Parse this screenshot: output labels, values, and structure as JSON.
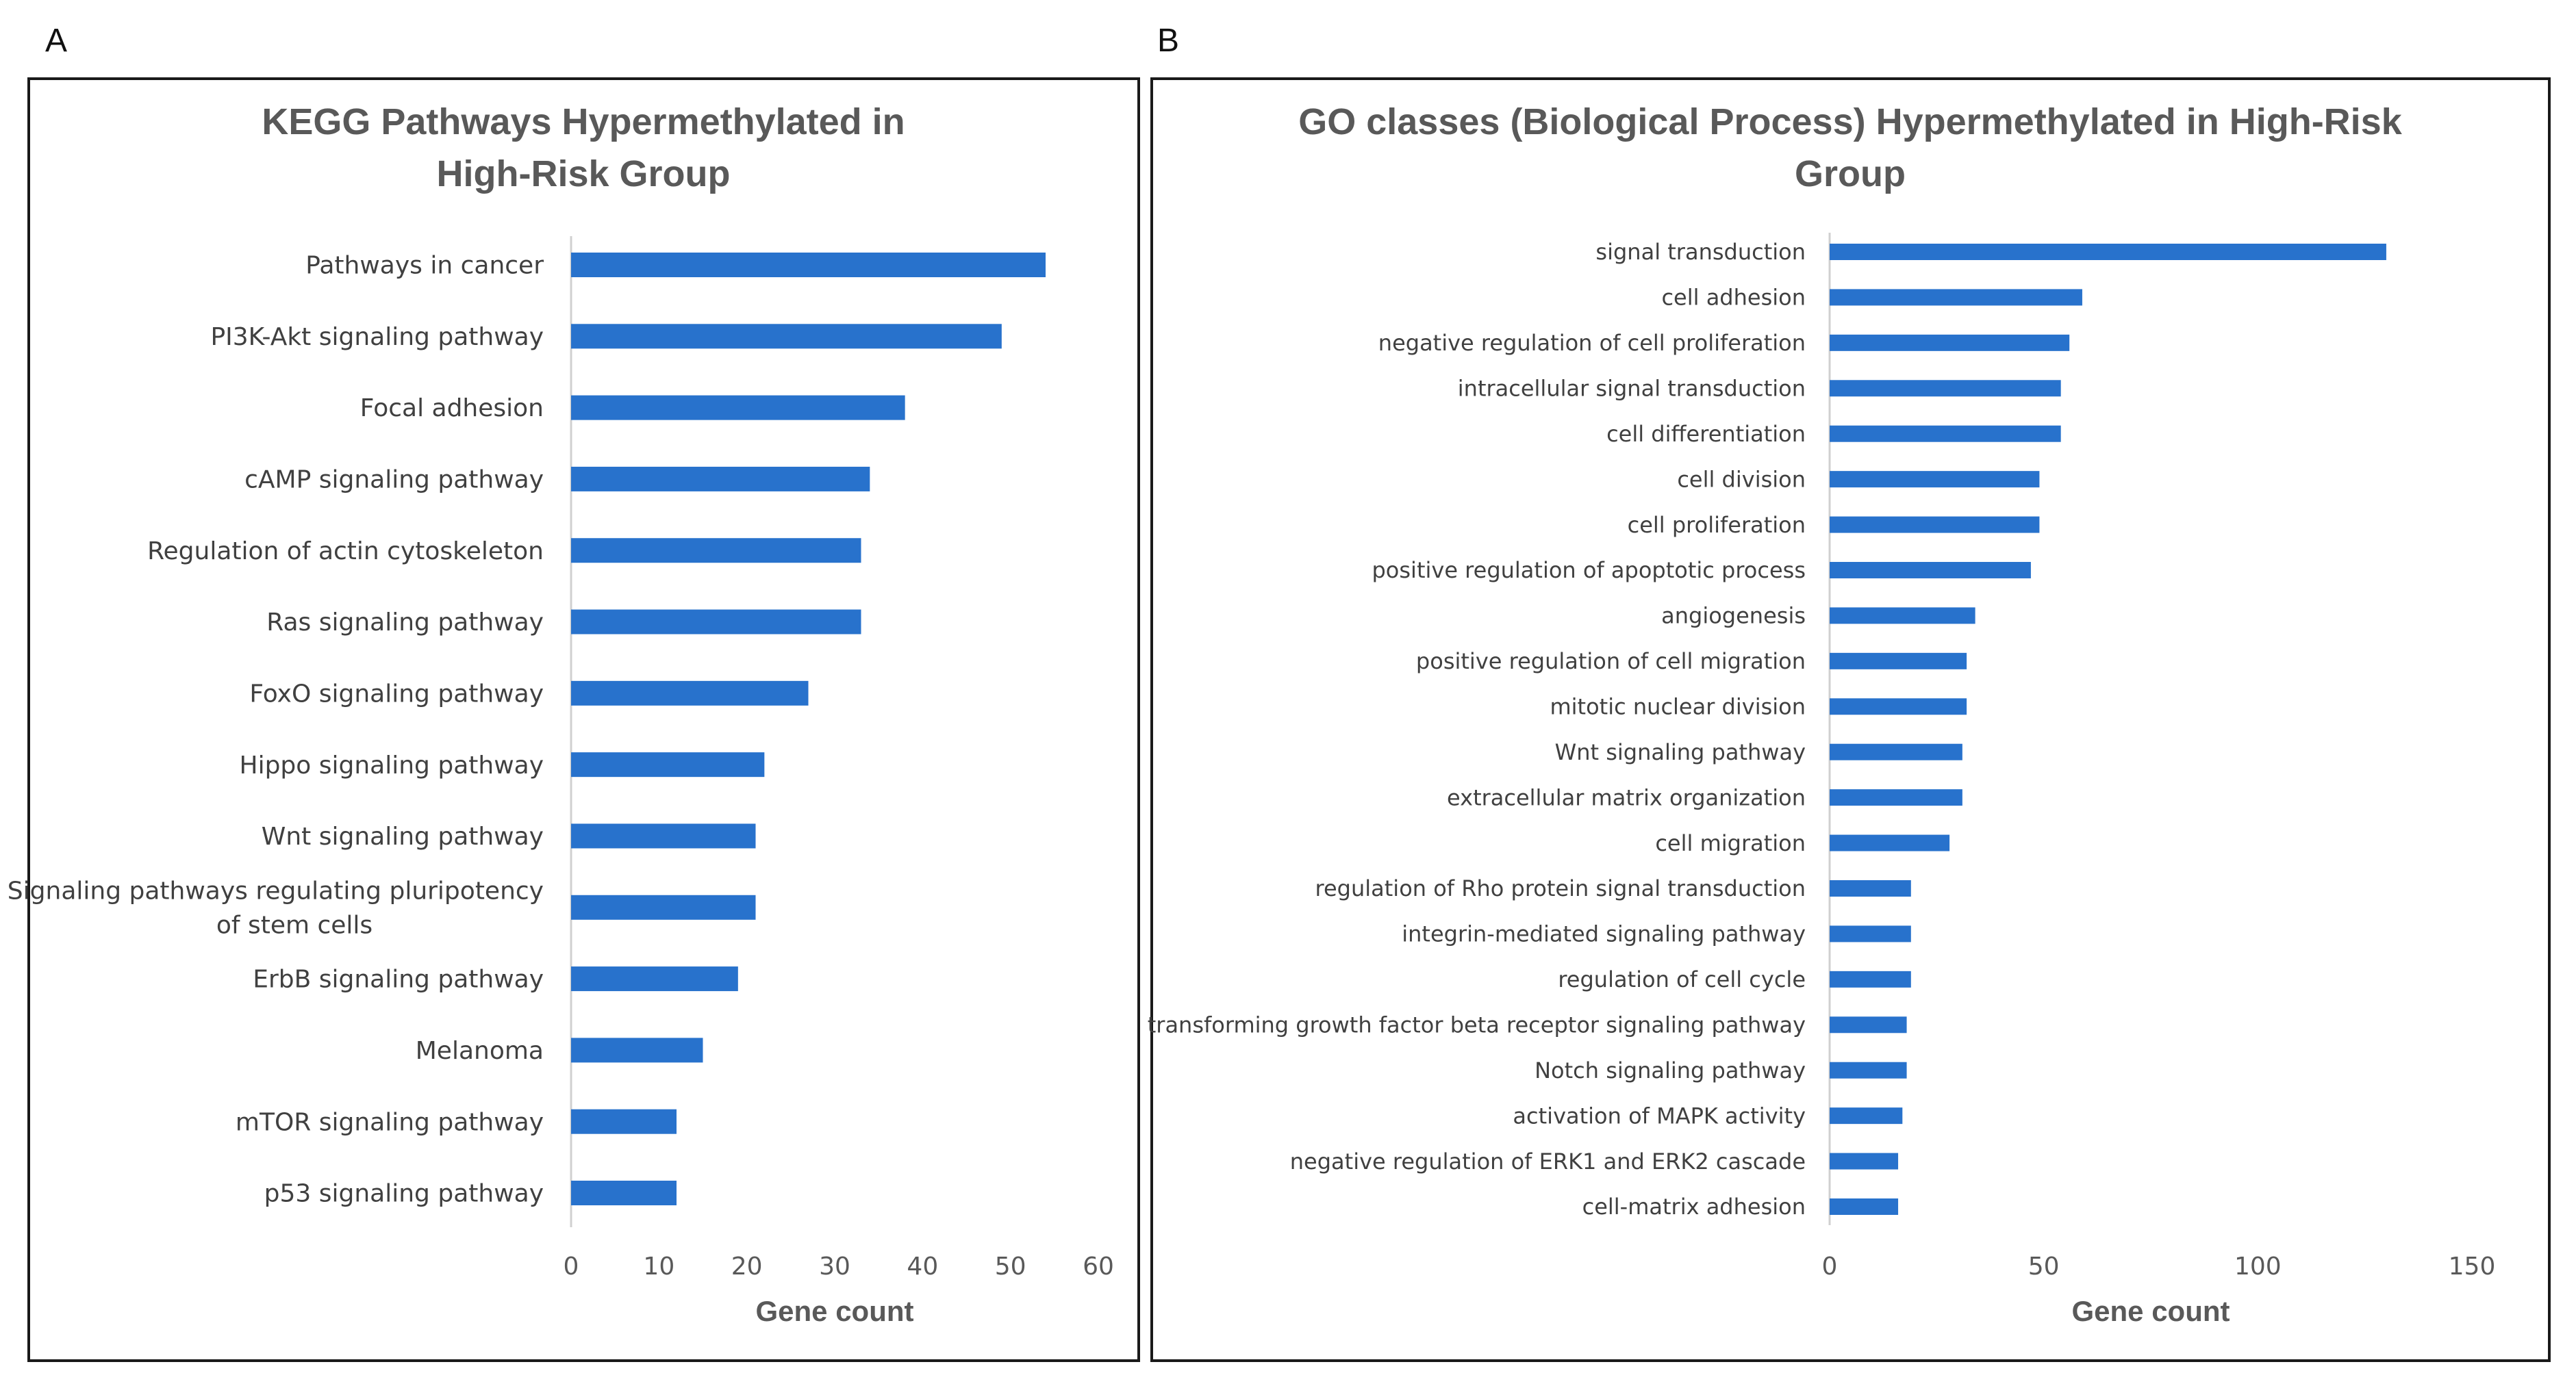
{
  "panels": {
    "a_label": "A",
    "b_label": "B"
  },
  "chart_data": [
    {
      "type": "bar",
      "orientation": "horizontal",
      "title": "KEGG Pathways Hypermethylated in High-Risk Group",
      "title_lines": [
        "KEGG Pathways Hypermethylated in",
        "High-Risk Group"
      ],
      "xlabel": "Gene count",
      "ylabel": "",
      "xlim": [
        0,
        60
      ],
      "xticks": [
        0,
        10,
        20,
        30,
        40,
        50,
        60
      ],
      "grid": false,
      "bar_color": "#2872CC",
      "categories": [
        "Pathways in cancer",
        "PI3K-Akt signaling pathway",
        "Focal adhesion",
        "cAMP signaling pathway",
        "Regulation of actin cytoskeleton",
        "Ras signaling pathway",
        "FoxO signaling pathway",
        "Hippo signaling pathway",
        "Wnt signaling pathway",
        "Signaling pathways regulating pluripotency of stem cells",
        "ErbB signaling pathway",
        "Melanoma",
        "mTOR signaling pathway",
        "p53 signaling pathway"
      ],
      "category_lines": [
        [
          "Pathways in cancer"
        ],
        [
          "PI3K-Akt signaling pathway"
        ],
        [
          "Focal adhesion"
        ],
        [
          "cAMP signaling pathway"
        ],
        [
          "Regulation of actin cytoskeleton"
        ],
        [
          "Ras signaling pathway"
        ],
        [
          "FoxO signaling pathway"
        ],
        [
          "Hippo signaling pathway"
        ],
        [
          "Wnt signaling pathway"
        ],
        [
          "Signaling pathways regulating pluripotency",
          "of stem cells"
        ],
        [
          "ErbB signaling pathway"
        ],
        [
          "Melanoma"
        ],
        [
          "mTOR signaling pathway"
        ],
        [
          "p53 signaling pathway"
        ]
      ],
      "values": [
        54,
        49,
        38,
        34,
        33,
        33,
        27,
        22,
        21,
        21,
        19,
        15,
        12,
        12
      ]
    },
    {
      "type": "bar",
      "orientation": "horizontal",
      "title": "GO classes (Biological Process) Hypermethylated in High-Risk Group",
      "title_lines": [
        "GO classes (Biological Process) Hypermethylated in High-Risk",
        "Group"
      ],
      "xlabel": "Gene count",
      "ylabel": "",
      "xlim": [
        0,
        150
      ],
      "xticks": [
        0,
        50,
        100,
        150
      ],
      "grid": false,
      "bar_color": "#2872CC",
      "categories": [
        "signal transduction",
        "cell adhesion",
        "negative regulation of cell proliferation",
        "intracellular signal transduction",
        "cell differentiation",
        "cell division",
        "cell proliferation",
        "positive regulation of apoptotic process",
        "angiogenesis",
        "positive regulation of cell migration",
        "mitotic nuclear division",
        "Wnt signaling pathway",
        "extracellular matrix organization",
        "cell migration",
        "regulation of Rho protein signal transduction",
        "integrin-mediated signaling pathway",
        "regulation of cell cycle",
        "transforming growth factor beta receptor signaling pathway",
        "Notch signaling pathway",
        "activation of MAPK activity",
        "negative regulation of ERK1 and ERK2 cascade",
        "cell-matrix adhesion"
      ],
      "values": [
        130,
        59,
        56,
        54,
        54,
        49,
        49,
        47,
        34,
        32,
        32,
        31,
        31,
        28,
        19,
        19,
        19,
        18,
        18,
        17,
        16,
        16
      ]
    }
  ]
}
